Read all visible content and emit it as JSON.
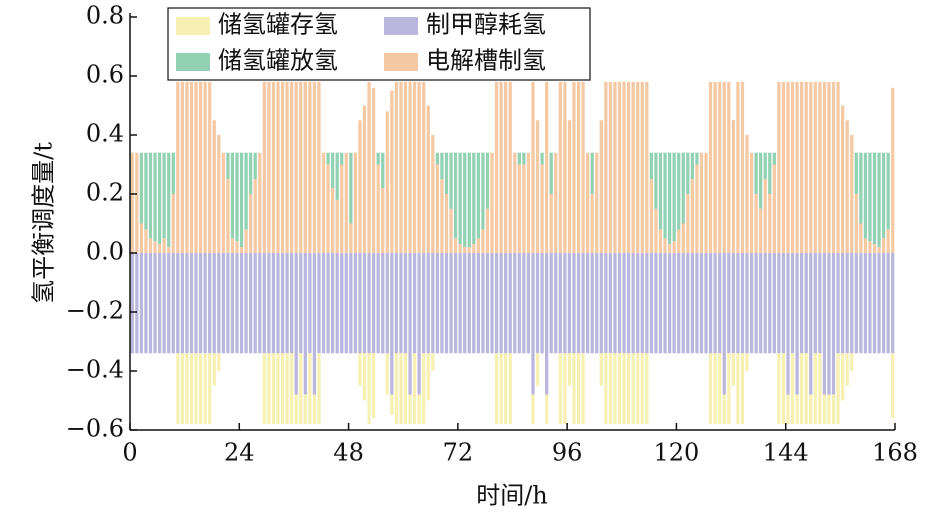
{
  "chart_data": {
    "type": "stacked_bar",
    "x_label": "时间/h",
    "y_label": "氢平衡调度量/t",
    "x": [
      1,
      2,
      3,
      4,
      5,
      6,
      7,
      8,
      9,
      10,
      11,
      12,
      13,
      14,
      15,
      16,
      17,
      18,
      19,
      20,
      21,
      22,
      23,
      24,
      25,
      26,
      27,
      28,
      29,
      30,
      31,
      32,
      33,
      34,
      35,
      36,
      37,
      38,
      39,
      40,
      41,
      42,
      43,
      44,
      45,
      46,
      47,
      48,
      49,
      50,
      51,
      52,
      53,
      54,
      55,
      56,
      57,
      58,
      59,
      60,
      61,
      62,
      63,
      64,
      65,
      66,
      67,
      68,
      69,
      70,
      71,
      72,
      73,
      74,
      75,
      76,
      77,
      78,
      79,
      80,
      81,
      82,
      83,
      84,
      85,
      86,
      87,
      88,
      89,
      90,
      91,
      92,
      93,
      94,
      95,
      96,
      97,
      98,
      99,
      100,
      101,
      102,
      103,
      104,
      105,
      106,
      107,
      108,
      109,
      110,
      111,
      112,
      113,
      114,
      115,
      116,
      117,
      118,
      119,
      120,
      121,
      122,
      123,
      124,
      125,
      126,
      127,
      128,
      129,
      130,
      131,
      132,
      133,
      134,
      135,
      136,
      137,
      138,
      139,
      140,
      141,
      142,
      143,
      144,
      145,
      146,
      147,
      148,
      149,
      150,
      151,
      152,
      153,
      154,
      155,
      156,
      157,
      158,
      159,
      160,
      161,
      162,
      163,
      164,
      165,
      166,
      167,
      168
    ],
    "series": [
      {
        "name": "电解槽制氢",
        "color": "#f6c9a5",
        "values": [
          0.34,
          0.34,
          0.1,
          0.08,
          0.05,
          0.04,
          0.03,
          0.05,
          0.02,
          0.2,
          0.58,
          0.58,
          0.58,
          0.58,
          0.58,
          0.58,
          0.58,
          0.58,
          0.45,
          0.4,
          0.34,
          0.25,
          0.05,
          0.04,
          0.02,
          0.08,
          0.2,
          0.25,
          0.34,
          0.58,
          0.58,
          0.58,
          0.58,
          0.58,
          0.58,
          0.58,
          0.58,
          0.58,
          0.58,
          0.58,
          0.58,
          0.58,
          0.34,
          0.3,
          0.22,
          0.18,
          0.3,
          0.34,
          0.1,
          0.34,
          0.45,
          0.5,
          0.58,
          0.56,
          0.3,
          0.22,
          0.48,
          0.55,
          0.58,
          0.58,
          0.58,
          0.58,
          0.58,
          0.58,
          0.58,
          0.5,
          0.4,
          0.3,
          0.25,
          0.2,
          0.15,
          0.05,
          0.03,
          0.02,
          0.02,
          0.03,
          0.05,
          0.08,
          0.15,
          0.34,
          0.58,
          0.58,
          0.58,
          0.58,
          0.34,
          0.3,
          0.3,
          0.34,
          0.58,
          0.45,
          0.3,
          0.58,
          0.2,
          0.34,
          0.58,
          0.58,
          0.45,
          0.58,
          0.58,
          0.58,
          0.34,
          0.2,
          0.34,
          0.45,
          0.58,
          0.58,
          0.58,
          0.58,
          0.58,
          0.58,
          0.58,
          0.58,
          0.58,
          0.58,
          0.25,
          0.15,
          0.08,
          0.05,
          0.03,
          0.04,
          0.08,
          0.1,
          0.2,
          0.25,
          0.3,
          0.34,
          0.34,
          0.58,
          0.58,
          0.58,
          0.58,
          0.58,
          0.45,
          0.58,
          0.58,
          0.4,
          0.34,
          0.2,
          0.15,
          0.25,
          0.2,
          0.3,
          0.58,
          0.58,
          0.58,
          0.58,
          0.58,
          0.58,
          0.58,
          0.58,
          0.58,
          0.58,
          0.58,
          0.58,
          0.58,
          0.58,
          0.5,
          0.45,
          0.4,
          0.2,
          0.1,
          0.05,
          0.04,
          0.03,
          0.02,
          0.05,
          0.08,
          0.56
        ]
      },
      {
        "name": "储氢罐放氢",
        "color": "#92d2b2",
        "values": [
          0,
          0,
          0.24,
          0.26,
          0.29,
          0.3,
          0.31,
          0.29,
          0.32,
          0.14,
          0,
          0,
          0,
          0,
          0,
          0,
          0,
          0,
          0,
          0,
          0,
          0.09,
          0.29,
          0.3,
          0.32,
          0.26,
          0.14,
          0.09,
          0,
          0,
          0,
          0,
          0,
          0,
          0,
          0,
          0,
          0,
          0,
          0,
          0,
          0,
          0,
          0.04,
          0.12,
          0.16,
          0.04,
          0,
          0.24,
          0,
          0,
          0,
          0,
          0,
          0.04,
          0.12,
          0,
          0,
          0,
          0,
          0,
          0,
          0,
          0,
          0,
          0,
          0,
          0.04,
          0.09,
          0.14,
          0.19,
          0.29,
          0.31,
          0.32,
          0.32,
          0.31,
          0.29,
          0.26,
          0.19,
          0,
          0,
          0,
          0,
          0,
          0,
          0.04,
          0.04,
          0,
          0,
          0,
          0.04,
          0,
          0.14,
          0,
          0,
          0,
          0,
          0,
          0,
          0,
          0,
          0.14,
          0,
          0,
          0,
          0,
          0,
          0,
          0,
          0,
          0,
          0,
          0,
          0,
          0.09,
          0.19,
          0.26,
          0.29,
          0.31,
          0.3,
          0.26,
          0.24,
          0.14,
          0.09,
          0.04,
          0,
          0,
          0,
          0,
          0,
          0,
          0,
          0,
          0,
          0,
          0,
          0,
          0.14,
          0.19,
          0.09,
          0.14,
          0.04,
          0,
          0,
          0,
          0,
          0,
          0,
          0,
          0,
          0,
          0,
          0,
          0,
          0,
          0,
          0,
          0,
          0,
          0.14,
          0.24,
          0.29,
          0.3,
          0.31,
          0.32,
          0.29,
          0.26,
          0
        ]
      },
      {
        "name": "制甲醇耗氢",
        "color": "#bab6de",
        "values": [
          -0.34,
          -0.34,
          -0.34,
          -0.34,
          -0.34,
          -0.34,
          -0.34,
          -0.34,
          -0.34,
          -0.34,
          -0.34,
          -0.34,
          -0.34,
          -0.34,
          -0.34,
          -0.34,
          -0.34,
          -0.34,
          -0.34,
          -0.34,
          -0.34,
          -0.34,
          -0.34,
          -0.34,
          -0.34,
          -0.34,
          -0.34,
          -0.34,
          -0.34,
          -0.34,
          -0.34,
          -0.34,
          -0.34,
          -0.34,
          -0.34,
          -0.34,
          -0.48,
          -0.34,
          -0.48,
          -0.34,
          -0.48,
          -0.34,
          -0.34,
          -0.34,
          -0.34,
          -0.34,
          -0.34,
          -0.34,
          -0.34,
          -0.34,
          -0.34,
          -0.34,
          -0.34,
          -0.34,
          -0.34,
          -0.34,
          -0.34,
          -0.48,
          -0.34,
          -0.34,
          -0.34,
          -0.48,
          -0.34,
          -0.48,
          -0.34,
          -0.34,
          -0.34,
          -0.34,
          -0.34,
          -0.34,
          -0.34,
          -0.34,
          -0.34,
          -0.34,
          -0.34,
          -0.34,
          -0.34,
          -0.34,
          -0.34,
          -0.34,
          -0.34,
          -0.34,
          -0.34,
          -0.34,
          -0.34,
          -0.34,
          -0.34,
          -0.34,
          -0.48,
          -0.34,
          -0.34,
          -0.48,
          -0.34,
          -0.34,
          -0.34,
          -0.34,
          -0.34,
          -0.34,
          -0.34,
          -0.34,
          -0.34,
          -0.34,
          -0.34,
          -0.34,
          -0.34,
          -0.34,
          -0.34,
          -0.34,
          -0.34,
          -0.34,
          -0.34,
          -0.34,
          -0.34,
          -0.34,
          -0.34,
          -0.34,
          -0.34,
          -0.34,
          -0.34,
          -0.34,
          -0.34,
          -0.34,
          -0.34,
          -0.34,
          -0.34,
          -0.34,
          -0.34,
          -0.34,
          -0.34,
          -0.34,
          -0.48,
          -0.34,
          -0.34,
          -0.34,
          -0.34,
          -0.34,
          -0.34,
          -0.34,
          -0.34,
          -0.34,
          -0.34,
          -0.34,
          -0.34,
          -0.34,
          -0.48,
          -0.34,
          -0.48,
          -0.34,
          -0.34,
          -0.48,
          -0.34,
          -0.34,
          -0.48,
          -0.48,
          -0.48,
          -0.34,
          -0.34,
          -0.34,
          -0.34,
          -0.34,
          -0.34,
          -0.34,
          -0.34,
          -0.34,
          -0.34,
          -0.34,
          -0.34,
          -0.34
        ]
      },
      {
        "name": "储氢罐存氢",
        "color": "#f6f1b3",
        "values": [
          0,
          0,
          0,
          0,
          0,
          0,
          0,
          0,
          0,
          0,
          -0.24,
          -0.24,
          -0.24,
          -0.24,
          -0.24,
          -0.24,
          -0.24,
          -0.24,
          -0.11,
          -0.06,
          0,
          0,
          0,
          0,
          0,
          0,
          0,
          0,
          0,
          -0.24,
          -0.24,
          -0.24,
          -0.24,
          -0.24,
          -0.24,
          -0.24,
          -0.1,
          -0.24,
          -0.1,
          -0.24,
          -0.1,
          -0.24,
          0,
          0,
          0,
          0,
          0,
          0,
          0,
          0,
          -0.11,
          -0.16,
          -0.24,
          -0.22,
          0,
          0,
          -0.14,
          -0.07,
          -0.24,
          -0.24,
          -0.24,
          -0.1,
          -0.24,
          -0.1,
          -0.24,
          -0.16,
          -0.06,
          0,
          0,
          0,
          0,
          0,
          0,
          0,
          0,
          0,
          0,
          0,
          0,
          0,
          -0.24,
          -0.24,
          -0.24,
          -0.24,
          0,
          0,
          0,
          0,
          -0.1,
          -0.11,
          0,
          -0.1,
          0,
          0,
          -0.24,
          -0.24,
          -0.11,
          -0.24,
          -0.24,
          -0.24,
          0,
          0,
          0,
          -0.11,
          -0.24,
          -0.24,
          -0.24,
          -0.24,
          -0.24,
          -0.24,
          -0.24,
          -0.24,
          -0.24,
          -0.24,
          0,
          0,
          0,
          0,
          0,
          0,
          0,
          0,
          0,
          0,
          0,
          0,
          0,
          -0.24,
          -0.24,
          -0.24,
          -0.1,
          -0.24,
          -0.11,
          -0.24,
          -0.24,
          -0.06,
          0,
          0,
          0,
          0,
          0,
          0,
          -0.24,
          -0.24,
          -0.1,
          -0.24,
          -0.1,
          -0.24,
          -0.24,
          -0.1,
          -0.24,
          -0.24,
          -0.1,
          -0.1,
          -0.1,
          -0.24,
          -0.16,
          -0.11,
          -0.06,
          0,
          0,
          0,
          0,
          0,
          0,
          0,
          0,
          -0.22
        ]
      }
    ],
    "xlim": [
      0,
      168
    ],
    "xticks": [
      0,
      24,
      48,
      72,
      96,
      120,
      144,
      168
    ],
    "ylim": [
      -0.6,
      0.8
    ],
    "yticks": [
      {
        "value": -0.6,
        "label": "−0.6"
      },
      {
        "value": -0.4,
        "label": "−0.4"
      },
      {
        "value": -0.2,
        "label": "−0.2"
      },
      {
        "value": 0,
        "label": "0.0"
      },
      0.2,
      0.4,
      0.6,
      0.8
    ],
    "legend": "upper left"
  }
}
